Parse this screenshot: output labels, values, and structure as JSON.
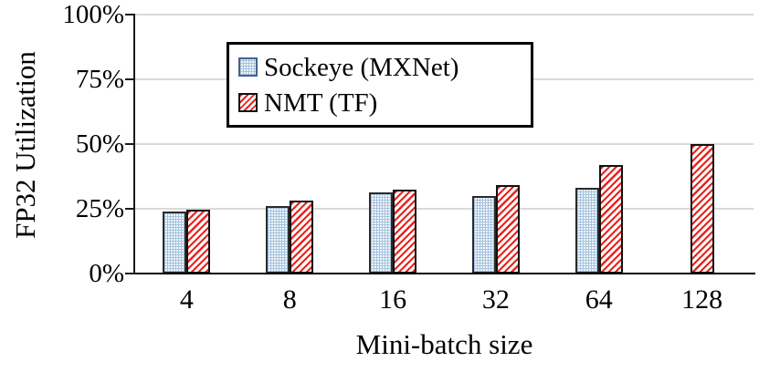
{
  "chart_data": {
    "type": "bar",
    "title": "",
    "xlabel": "Mini-batch size",
    "ylabel": "FP32 Utilization",
    "categories": [
      "4",
      "8",
      "16",
      "32",
      "64",
      "128"
    ],
    "series": [
      {
        "name": "Sockeye (MXNet)",
        "pattern": "dotted-blue",
        "color": "#bdd3e8",
        "values": [
          24,
          26,
          31.5,
          30,
          33,
          null
        ]
      },
      {
        "name": "NMT (TF)",
        "pattern": "diagonal-red-upward",
        "color": "#e8231d",
        "values": [
          24.5,
          28,
          32.5,
          34,
          42,
          50
        ]
      }
    ],
    "ylim": [
      0,
      100
    ],
    "yticks": [
      0,
      25,
      50,
      75,
      100
    ],
    "ytick_labels": [
      "0%",
      "25%",
      "50%",
      "75%",
      "100%"
    ],
    "grid": true,
    "gridline_color": "#d9d9d9",
    "legend_position": "top-center",
    "legend_border_color": "#000000"
  }
}
